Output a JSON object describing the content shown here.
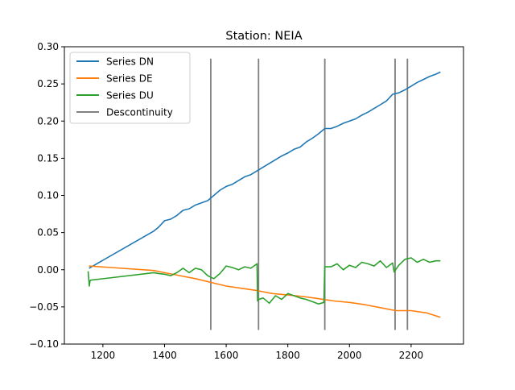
{
  "chart_data": {
    "type": "line",
    "title": "Station: NEIA",
    "xlabel": "",
    "ylabel": "",
    "xlim": [
      1075,
      2370
    ],
    "ylim": [
      -0.1,
      0.3
    ],
    "xticks": [
      1200,
      1400,
      1600,
      1800,
      2000,
      2200
    ],
    "yticks": [
      -0.1,
      -0.05,
      0.0,
      0.05,
      0.1,
      0.15,
      0.2,
      0.25,
      0.3
    ],
    "ytick_labels": [
      "−0.10",
      "−0.05",
      "0.00",
      "0.05",
      "0.10",
      "0.15",
      "0.20",
      "0.25",
      "0.30"
    ],
    "grid": false,
    "legend_position": "upper-left",
    "series": [
      {
        "name": "Series DN",
        "color": "#1f77b4",
        "x": [
          1155,
          1365,
          1380,
          1400,
          1420,
          1440,
          1460,
          1480,
          1500,
          1520,
          1540,
          1560,
          1580,
          1600,
          1620,
          1640,
          1660,
          1680,
          1700,
          1720,
          1740,
          1760,
          1780,
          1800,
          1820,
          1840,
          1860,
          1880,
          1900,
          1920,
          1940,
          1960,
          1980,
          2000,
          2020,
          2040,
          2060,
          2080,
          2100,
          2120,
          2140,
          2160,
          2180,
          2200,
          2220,
          2240,
          2260,
          2280,
          2295
        ],
        "y": [
          0.002,
          0.052,
          0.057,
          0.066,
          0.068,
          0.073,
          0.08,
          0.082,
          0.087,
          0.09,
          0.093,
          0.1,
          0.107,
          0.112,
          0.115,
          0.12,
          0.125,
          0.128,
          0.133,
          0.138,
          0.143,
          0.148,
          0.153,
          0.157,
          0.162,
          0.165,
          0.172,
          0.177,
          0.183,
          0.19,
          0.19,
          0.193,
          0.197,
          0.2,
          0.203,
          0.208,
          0.212,
          0.217,
          0.222,
          0.227,
          0.236,
          0.238,
          0.242,
          0.247,
          0.252,
          0.256,
          0.26,
          0.263,
          0.266
        ]
      },
      {
        "name": "Series DE",
        "color": "#ff7f0e",
        "x": [
          1155,
          1365,
          1400,
          1450,
          1500,
          1550,
          1600,
          1650,
          1700,
          1750,
          1800,
          1850,
          1900,
          1950,
          2000,
          2050,
          2100,
          2150,
          2200,
          2250,
          2295
        ],
        "y": [
          0.005,
          -0.001,
          -0.004,
          -0.008,
          -0.012,
          -0.017,
          -0.022,
          -0.025,
          -0.028,
          -0.032,
          -0.034,
          -0.036,
          -0.039,
          -0.042,
          -0.044,
          -0.047,
          -0.051,
          -0.055,
          -0.055,
          -0.058,
          -0.064
        ]
      },
      {
        "name": "Series DU",
        "color": "#2ca02c",
        "x": [
          1152,
          1156,
          1158,
          1160,
          1365,
          1380,
          1400,
          1420,
          1440,
          1460,
          1480,
          1500,
          1520,
          1540,
          1560,
          1580,
          1600,
          1620,
          1640,
          1660,
          1680,
          1700,
          1702,
          1705,
          1720,
          1740,
          1760,
          1780,
          1800,
          1820,
          1840,
          1860,
          1880,
          1900,
          1917,
          1920,
          1940,
          1960,
          1980,
          2000,
          2020,
          2040,
          2060,
          2080,
          2100,
          2120,
          2140,
          2145,
          2160,
          2180,
          2200,
          2220,
          2240,
          2260,
          2280,
          2295
        ],
        "y": [
          -0.002,
          -0.022,
          -0.015,
          -0.014,
          -0.004,
          -0.005,
          -0.006,
          -0.008,
          -0.004,
          0.002,
          -0.004,
          0.002,
          0.0,
          -0.008,
          -0.012,
          -0.005,
          0.005,
          0.003,
          0.0,
          0.004,
          0.002,
          0.008,
          -0.042,
          -0.04,
          -0.038,
          -0.045,
          -0.035,
          -0.04,
          -0.032,
          -0.035,
          -0.038,
          -0.04,
          -0.043,
          -0.046,
          -0.044,
          0.004,
          0.004,
          0.008,
          0.0,
          0.006,
          0.003,
          0.01,
          0.008,
          0.005,
          0.012,
          0.003,
          0.009,
          -0.003,
          0.006,
          0.014,
          0.016,
          0.01,
          0.014,
          0.01,
          0.012,
          0.012
        ]
      }
    ],
    "discontinuity": {
      "name": "Descontinuity",
      "color": "#808080",
      "x": [
        1550,
        1705,
        1920,
        2148,
        2188
      ],
      "y_range": [
        -0.081,
        0.284
      ]
    }
  }
}
